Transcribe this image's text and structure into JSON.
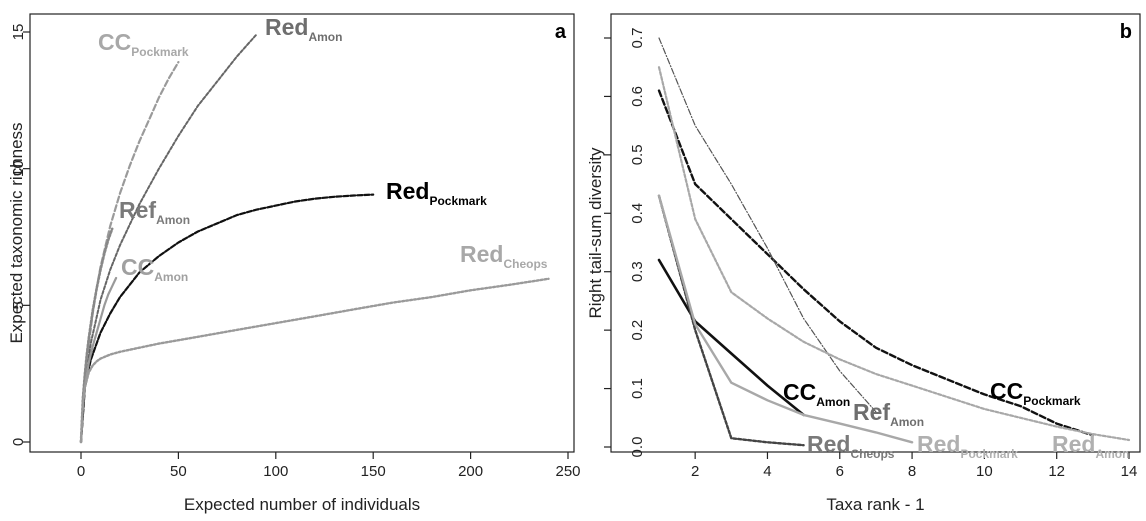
{
  "chart_data": [
    {
      "panel": "a",
      "type": "line",
      "title": "",
      "xlabel": "Expected number of individuals",
      "ylabel": "Expected taxonomic richness",
      "xlim": [
        0,
        250
      ],
      "ylim": [
        0,
        15
      ],
      "xticks": [
        0,
        50,
        100,
        150,
        200,
        250
      ],
      "yticks": [
        0,
        5,
        10,
        15
      ],
      "grid": false,
      "legend": "none",
      "series": [
        {
          "label_main": "CC",
          "label_sub": "Pockmark",
          "name": "CCPockmark",
          "color": "#9a9a9a",
          "dash": "6,3",
          "width": 2.2,
          "label_color": "#a8a8a8",
          "x": [
            0,
            1,
            2,
            4,
            6,
            8,
            10,
            15,
            20,
            25,
            30,
            35,
            40,
            45,
            50
          ],
          "y": [
            0,
            1.2,
            2.1,
            3.6,
            4.7,
            5.6,
            6.4,
            7.9,
            9.1,
            10.1,
            11.0,
            11.8,
            12.6,
            13.3,
            13.9
          ]
        },
        {
          "label_main": "Red",
          "label_sub": "Amon",
          "name": "RedAmon",
          "color": "#666666",
          "dash": "3,2",
          "width": 2.0,
          "label_color": "#6e6e6e",
          "x": [
            0,
            2,
            5,
            10,
            15,
            20,
            30,
            40,
            50,
            60,
            70,
            80,
            90
          ],
          "y": [
            0,
            2.0,
            3.6,
            5.2,
            6.3,
            7.2,
            8.7,
            10.0,
            11.2,
            12.3,
            13.2,
            14.1,
            14.9
          ]
        },
        {
          "label_main": "Red",
          "label_sub": "Pockmark",
          "name": "RedPockmark",
          "color": "#111111",
          "dash": "5,2",
          "width": 2.2,
          "label_color": "#000000",
          "x": [
            0,
            2,
            5,
            10,
            15,
            20,
            30,
            40,
            50,
            60,
            70,
            80,
            90,
            100,
            110,
            120,
            130,
            140,
            150
          ],
          "y": [
            0,
            2.0,
            3.0,
            4.0,
            4.7,
            5.3,
            6.2,
            6.8,
            7.3,
            7.7,
            8.0,
            8.3,
            8.5,
            8.65,
            8.8,
            8.9,
            8.97,
            9.02,
            9.05
          ]
        },
        {
          "label_main": "Ref",
          "label_sub": "Amon",
          "name": "RefAmon",
          "color": "#888888",
          "dash": "2,2",
          "width": 2.6,
          "label_color": "#7a7a7a",
          "x": [
            0,
            1,
            2,
            3,
            4,
            6,
            8,
            10,
            12,
            14,
            16
          ],
          "y": [
            0,
            1.6,
            2.5,
            3.2,
            3.8,
            4.8,
            5.6,
            6.3,
            6.9,
            7.4,
            7.8
          ]
        },
        {
          "label_main": "CC",
          "label_sub": "Amon",
          "name": "CCAmon",
          "color": "#9a9a9a",
          "dash": "",
          "width": 2.2,
          "label_color": "#a0a0a0",
          "x": [
            0,
            1,
            2,
            4,
            6,
            8,
            10,
            12,
            14,
            16,
            18
          ],
          "y": [
            0,
            1.3,
            2.0,
            2.9,
            3.5,
            4.0,
            4.5,
            5.0,
            5.4,
            5.7,
            6.0
          ]
        },
        {
          "label_main": "Red",
          "label_sub": "Cheops",
          "name": "RedCheops",
          "color": "#9a9a9a",
          "dash": "2,2",
          "width": 2.4,
          "label_color": "#a8a8a8",
          "x": [
            0,
            1,
            2,
            4,
            6,
            8,
            10,
            15,
            20,
            30,
            40,
            60,
            80,
            100,
            120,
            140,
            160,
            180,
            200,
            220,
            240
          ],
          "y": [
            0,
            1.4,
            2.0,
            2.55,
            2.8,
            2.95,
            3.05,
            3.2,
            3.3,
            3.45,
            3.6,
            3.85,
            4.1,
            4.35,
            4.6,
            4.85,
            5.1,
            5.3,
            5.55,
            5.75,
            5.97
          ]
        }
      ]
    },
    {
      "panel": "b",
      "type": "line",
      "title": "",
      "xlabel": "Taxa rank - 1",
      "ylabel": "Right tail-sum diversity",
      "xlim": [
        1,
        14
      ],
      "ylim": [
        0,
        0.7
      ],
      "xticks": [
        2,
        4,
        6,
        8,
        10,
        12,
        14
      ],
      "yticks": [
        0.0,
        0.1,
        0.2,
        0.3,
        0.4,
        0.5,
        0.6,
        0.7
      ],
      "ytick_labels": [
        "0.0",
        "0.1",
        "0.2",
        "0.3",
        "0.4",
        "0.5",
        "0.6",
        "0.7"
      ],
      "grid": false,
      "legend": "none",
      "series": [
        {
          "label_main": "CC",
          "label_sub": "Amon",
          "name": "CCAmon",
          "color": "#111111",
          "dash": "",
          "width": 2.6,
          "label_color": "#000000",
          "x": [
            1,
            2,
            3,
            4,
            5
          ],
          "y": [
            0.32,
            0.215,
            0.16,
            0.105,
            0.055
          ]
        },
        {
          "label_main": "CC",
          "label_sub": "Pockmark",
          "name": "CCPockmark",
          "color": "#111111",
          "dash": "6,3",
          "width": 2.4,
          "label_color": "#000000",
          "x": [
            1,
            2,
            3,
            4,
            5,
            6,
            7,
            8,
            9,
            10,
            11,
            12,
            13
          ],
          "y": [
            0.61,
            0.45,
            0.39,
            0.33,
            0.27,
            0.215,
            0.17,
            0.14,
            0.115,
            0.09,
            0.07,
            0.04,
            0.02
          ]
        },
        {
          "label_main": "Ref",
          "label_sub": "Amon",
          "name": "RefAmon",
          "color": "#555555",
          "dash": "6,2,1,2",
          "width": 1.2,
          "label_color": "#6e6e6e",
          "x": [
            1,
            2,
            3,
            4,
            5,
            6,
            7
          ],
          "y": [
            0.7,
            0.55,
            0.45,
            0.34,
            0.22,
            0.13,
            0.06
          ]
        },
        {
          "label_main": "Red",
          "label_sub": "Cheops",
          "name": "RedCheops",
          "color": "#444444",
          "dash": "3,2",
          "width": 2.4,
          "label_color": "#7a7a7a",
          "x": [
            1,
            2,
            3,
            4,
            5
          ],
          "y": [
            0.43,
            0.2,
            0.015,
            0.008,
            0.003
          ]
        },
        {
          "label_main": "Red",
          "label_sub": "Pockmark",
          "name": "RedPockmark",
          "color": "#a8a8a8",
          "dash": "",
          "width": 2.4,
          "label_color": "#b0b0b0",
          "x": [
            1,
            2,
            3,
            4,
            5,
            6,
            7,
            8
          ],
          "y": [
            0.43,
            0.21,
            0.11,
            0.08,
            0.055,
            0.04,
            0.025,
            0.008
          ]
        },
        {
          "label_main": "Red",
          "label_sub": "Amon",
          "name": "RedAmon",
          "color": "#a8a8a8",
          "dash": "3,2",
          "width": 2.2,
          "label_color": "#b0b0b0",
          "x": [
            1,
            2,
            3,
            4,
            5,
            6,
            7,
            8,
            9,
            10,
            11,
            12,
            13,
            14
          ],
          "y": [
            0.65,
            0.39,
            0.265,
            0.22,
            0.18,
            0.15,
            0.125,
            0.105,
            0.085,
            0.065,
            0.05,
            0.035,
            0.022,
            0.012
          ]
        }
      ]
    }
  ]
}
